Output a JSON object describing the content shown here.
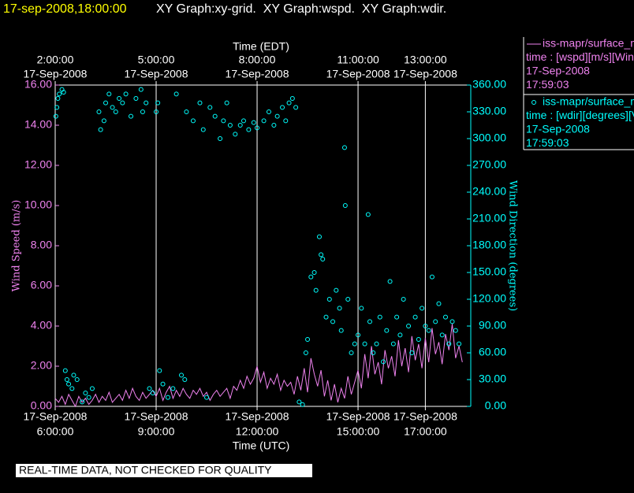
{
  "header": "17-sep-2008,18:00:00",
  "graphs": "XY Graph:xy-grid.  XY Graph:wspd.  XY Graph:wdir.",
  "note": "REAL-TIME DATA, NOT CHECKED FOR QUALITY",
  "chart_data": {
    "type": "xy",
    "xlabel": "Time (UTC)",
    "x2label": "Time (EDT)",
    "ylabel": "Wind Speed (m/s)",
    "y2label": "Wind Direction (degrees)",
    "xlim": [
      6,
      18.35
    ],
    "xticks": [
      {
        "value": 6,
        "date": "17-Sep-2008",
        "label": "6:00:00"
      },
      {
        "value": 9,
        "date": "17-Sep-2008",
        "label": "9:00:00"
      },
      {
        "value": 12,
        "date": "17-Sep-2008",
        "label": "12:00:00"
      },
      {
        "value": 15,
        "date": "17-Sep-2008",
        "label": "15:00:00"
      },
      {
        "value": 17,
        "date": "17-Sep-2008",
        "label": "17:00:00"
      }
    ],
    "x2ticks": [
      {
        "value": 6,
        "date": "17-Sep-2008",
        "label": "2:00:00"
      },
      {
        "value": 9,
        "date": "17-Sep-2008",
        "label": "5:00:00"
      },
      {
        "value": 12,
        "date": "17-Sep-2008",
        "label": "8:00:00"
      },
      {
        "value": 15,
        "date": "17-Sep-2008",
        "label": "11:00:00"
      },
      {
        "value": 17,
        "date": "17-Sep-2008",
        "label": "13:00:00"
      }
    ],
    "grid": true,
    "ylim": [
      0,
      16
    ],
    "yticks": [
      {
        "value": 0,
        "label": "0.00"
      },
      {
        "value": 2,
        "label": "2.00"
      },
      {
        "value": 4,
        "label": "4.00"
      },
      {
        "value": 6,
        "label": "6.00"
      },
      {
        "value": 8,
        "label": "8.00"
      },
      {
        "value": 10,
        "label": "10.00"
      },
      {
        "value": 12,
        "label": "12.00"
      },
      {
        "value": 14,
        "label": "14.00"
      },
      {
        "value": 16,
        "label": "16.00"
      }
    ],
    "y2lim": [
      0,
      360
    ],
    "y2ticks": [
      {
        "value": 0,
        "label": "0.00"
      },
      {
        "value": 30,
        "label": "30.00"
      },
      {
        "value": 60,
        "label": "60.00"
      },
      {
        "value": 90,
        "label": "90.00"
      },
      {
        "value": 120,
        "label": "120.00"
      },
      {
        "value": 150,
        "label": "150.00"
      },
      {
        "value": 180,
        "label": "180.00"
      },
      {
        "value": 210,
        "label": "210.00"
      },
      {
        "value": 240,
        "label": "240.00"
      },
      {
        "value": 270,
        "label": "270.00"
      },
      {
        "value": 300,
        "label": "300.00"
      },
      {
        "value": 330,
        "label": "330.00"
      },
      {
        "value": 360,
        "label": "360.00"
      }
    ],
    "series": [
      {
        "name": "iss-mapr/surface_m",
        "type": "line",
        "color": "#ee82ee",
        "axis": "y",
        "legend_lines": [
          "time : [wspd][m/s][Wind",
          "17-Sep-2008",
          "17:59:03"
        ],
        "x": [
          6.0,
          6.1,
          6.2,
          6.3,
          6.4,
          6.5,
          6.6,
          6.7,
          6.8,
          6.9,
          7.0,
          7.1,
          7.2,
          7.3,
          7.4,
          7.5,
          7.6,
          7.7,
          7.8,
          7.9,
          8.0,
          8.1,
          8.2,
          8.3,
          8.4,
          8.5,
          8.6,
          8.7,
          8.8,
          8.9,
          9.0,
          9.1,
          9.2,
          9.3,
          9.4,
          9.5,
          9.6,
          9.7,
          9.8,
          9.9,
          10.0,
          10.1,
          10.2,
          10.3,
          10.4,
          10.5,
          10.6,
          10.7,
          10.8,
          10.9,
          11.0,
          11.1,
          11.2,
          11.3,
          11.4,
          11.5,
          11.6,
          11.7,
          11.8,
          11.9,
          12.0,
          12.1,
          12.2,
          12.3,
          12.4,
          12.5,
          12.6,
          12.7,
          12.8,
          12.9,
          13.0,
          13.1,
          13.2,
          13.3,
          13.4,
          13.5,
          13.6,
          13.7,
          13.8,
          13.9,
          14.0,
          14.1,
          14.2,
          14.3,
          14.4,
          14.5,
          14.6,
          14.7,
          14.8,
          14.9,
          15.0,
          15.1,
          15.2,
          15.3,
          15.4,
          15.5,
          15.6,
          15.7,
          15.8,
          15.9,
          16.0,
          16.1,
          16.2,
          16.3,
          16.4,
          16.5,
          16.6,
          16.7,
          16.8,
          16.9,
          17.0,
          17.1,
          17.2,
          17.3,
          17.4,
          17.5,
          17.6,
          17.7,
          17.8,
          17.9,
          18.0,
          18.1
        ],
        "values": [
          0.4,
          0.2,
          0.5,
          0.1,
          0.6,
          0.3,
          0.0,
          0.5,
          0.2,
          0.4,
          0.1,
          0.3,
          0.6,
          0.2,
          0.5,
          0.3,
          0.7,
          0.2,
          0.4,
          0.6,
          0.3,
          0.8,
          0.4,
          0.9,
          0.5,
          0.3,
          0.7,
          0.4,
          0.6,
          0.8,
          0.5,
          0.9,
          0.3,
          0.7,
          1.0,
          0.4,
          0.8,
          0.5,
          0.9,
          0.6,
          0.4,
          0.8,
          0.6,
          0.9,
          0.5,
          0.7,
          0.3,
          0.6,
          0.8,
          0.5,
          0.7,
          0.9,
          0.4,
          1.0,
          0.8,
          1.3,
          0.9,
          1.5,
          1.1,
          1.4,
          2.0,
          1.2,
          1.7,
          0.9,
          1.4,
          1.1,
          1.6,
          0.8,
          1.3,
          1.0,
          1.2,
          0.6,
          1.5,
          0.8,
          1.9,
          0.7,
          2.4,
          1.6,
          1.0,
          1.8,
          0.5,
          1.3,
          0.3,
          1.1,
          0.2,
          0.9,
          0.4,
          1.5,
          0.6,
          1.2,
          1.8,
          0.9,
          2.6,
          1.4,
          3.0,
          1.6,
          2.2,
          1.1,
          2.8,
          1.9,
          2.5,
          1.5,
          3.3,
          2.0,
          2.9,
          1.7,
          3.5,
          2.3,
          3.1,
          1.9,
          3.4,
          2.2,
          3.9,
          2.6,
          3.2,
          2.1,
          3.6,
          2.8,
          4.1,
          2.4,
          3.0,
          2.2
        ]
      },
      {
        "name": "iss-mapr/surface_m",
        "type": "scatter",
        "color": "#00ffff",
        "axis": "y2",
        "legend_lines": [
          "time : [wdir][degrees][V",
          "17-Sep-2008",
          "17:59:03"
        ],
        "x": [
          6.02,
          6.05,
          6.08,
          6.12,
          6.2,
          6.25,
          6.3,
          6.35,
          6.4,
          6.5,
          6.55,
          6.65,
          6.8,
          6.9,
          7.0,
          7.1,
          7.3,
          7.35,
          7.45,
          7.5,
          7.6,
          7.7,
          7.8,
          7.9,
          8.0,
          8.1,
          8.25,
          8.4,
          8.55,
          8.6,
          8.7,
          8.8,
          8.9,
          9.0,
          9.05,
          9.1,
          9.2,
          9.35,
          9.5,
          9.6,
          9.75,
          9.85,
          9.9,
          10.1,
          10.3,
          10.4,
          10.5,
          10.6,
          10.75,
          10.9,
          11.0,
          11.1,
          11.2,
          11.35,
          11.5,
          11.6,
          11.75,
          11.9,
          12.0,
          12.2,
          12.35,
          12.5,
          12.6,
          12.75,
          12.85,
          12.95,
          13.05,
          13.15,
          13.25,
          13.35,
          13.45,
          13.5,
          13.6,
          13.7,
          13.75,
          13.85,
          13.9,
          13.95,
          14.05,
          14.15,
          14.25,
          14.35,
          14.45,
          14.5,
          14.6,
          14.62,
          14.7,
          14.8,
          14.9,
          15.0,
          15.1,
          15.2,
          15.3,
          15.35,
          15.45,
          15.55,
          15.65,
          15.75,
          15.85,
          15.95,
          16.05,
          16.15,
          16.25,
          16.35,
          16.5,
          16.6,
          16.7,
          16.8,
          16.9,
          17.0,
          17.1,
          17.2,
          17.3,
          17.4,
          17.5,
          17.6,
          17.7,
          17.8,
          17.9,
          18.0
        ],
        "values": [
          325,
          335,
          345,
          350,
          355,
          352,
          40,
          30,
          25,
          20,
          35,
          30,
          5,
          15,
          10,
          20,
          330,
          310,
          320,
          340,
          350,
          335,
          330,
          345,
          340,
          350,
          325,
          345,
          355,
          330,
          340,
          20,
          15,
          330,
          340,
          40,
          25,
          10,
          20,
          350,
          35,
          30,
          330,
          320,
          340,
          310,
          10,
          335,
          325,
          300,
          320,
          340,
          315,
          305,
          315,
          320,
          310,
          318,
          312,
          320,
          330,
          315,
          325,
          335,
          320,
          340,
          345,
          335,
          5,
          2,
          60,
          75,
          145,
          150,
          130,
          190,
          170,
          165,
          100,
          120,
          95,
          130,
          110,
          85,
          290,
          225,
          120,
          60,
          70,
          80,
          110,
          70,
          215,
          95,
          60,
          70,
          100,
          50,
          85,
          140,
          70,
          100,
          80,
          120,
          90,
          60,
          100,
          75,
          110,
          90,
          85,
          145,
          95,
          115,
          80,
          100,
          70,
          95,
          85,
          70
        ]
      }
    ]
  }
}
